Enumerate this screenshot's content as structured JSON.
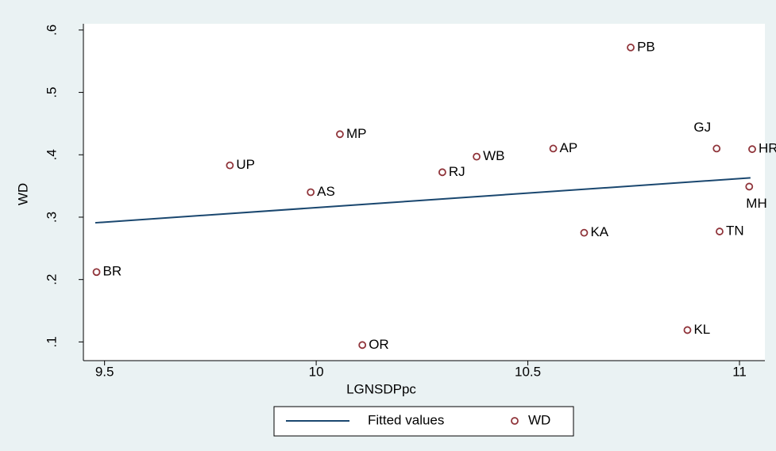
{
  "chart_data": {
    "type": "scatter",
    "x_label": "LGNSDPpc",
    "y_label": "WD",
    "xlim": [
      9.45,
      11.06
    ],
    "ylim": [
      0.07,
      0.61
    ],
    "xticks": [
      9.5,
      10,
      10.5,
      11
    ],
    "yticks": [
      {
        "value": 0.1,
        "label": ".1"
      },
      {
        "value": 0.2,
        "label": ".2"
      },
      {
        "value": 0.3,
        "label": ".3"
      },
      {
        "value": 0.4,
        "label": ".4"
      },
      {
        "value": 0.5,
        "label": ".5"
      },
      {
        "value": 0.6,
        "label": ".6"
      }
    ],
    "legend": "bottom",
    "series": [
      {
        "name": "Fitted values",
        "type": "line",
        "color": "#1a476f",
        "x": [
          9.478,
          11.026
        ],
        "values": [
          0.291,
          0.363
        ]
      },
      {
        "name": "WD",
        "type": "scatter",
        "color": "#90353b",
        "labels": [
          "BR",
          "OR",
          "AS",
          "UP",
          "MP",
          "RJ",
          "WB",
          "AP",
          "KA",
          "PB",
          "KL",
          "GJ",
          "TN",
          "MH",
          "HR"
        ],
        "x": [
          9.481,
          10.109,
          9.987,
          9.796,
          10.056,
          10.298,
          10.379,
          10.56,
          10.633,
          10.743,
          10.877,
          10.946,
          10.953,
          11.023,
          11.03
        ],
        "values": [
          0.212,
          0.095,
          0.34,
          0.383,
          0.433,
          0.372,
          0.397,
          0.41,
          0.275,
          0.572,
          0.119,
          0.41,
          0.277,
          0.349,
          0.409
        ]
      }
    ]
  }
}
